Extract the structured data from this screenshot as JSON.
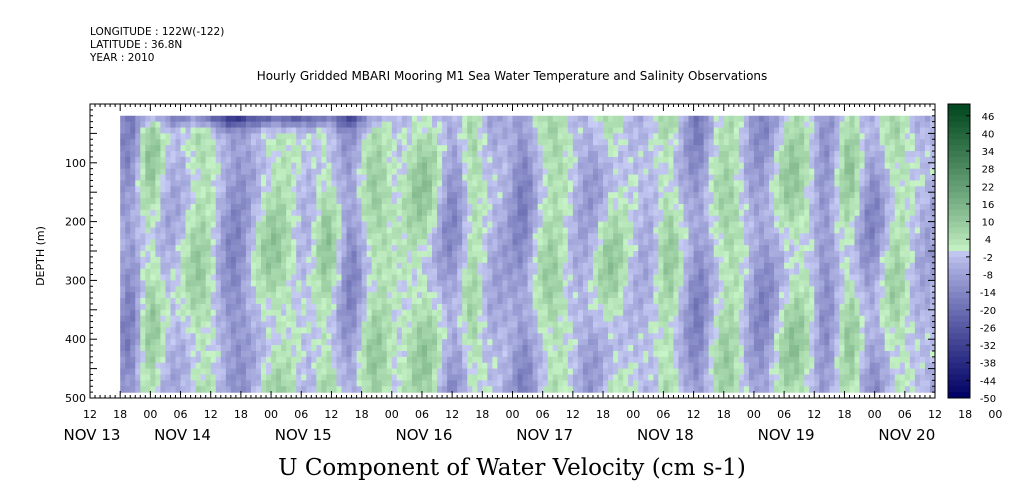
{
  "header": {
    "longitude": "LONGITUDE : 122W(-122)",
    "latitude": "LATITUDE : 36.8N",
    "year": "YEAR : 2010"
  },
  "chart_data": {
    "type": "heatmap",
    "title": "Hourly Gridded MBARI Mooring M1 Sea Water Temperature and Salinity Observations",
    "ylabel": "DEPTH (m)",
    "bottom_label": "U Component of Water Velocity (cm s-1)",
    "y_axis": {
      "range": [
        500,
        0
      ],
      "inverted": true,
      "ticks": [
        100,
        200,
        300,
        400,
        500
      ],
      "tick_labels": [
        "100",
        "200",
        "300",
        "400",
        "500"
      ],
      "data_depth_range": [
        20,
        490
      ]
    },
    "x_axis": {
      "range_hours": [
        0,
        168
      ],
      "hour_tick_labels": [
        "12",
        "18",
        "00",
        "06",
        "12",
        "18",
        "00",
        "06",
        "12",
        "18",
        "00",
        "06",
        "12",
        "18",
        "00",
        "06",
        "12",
        "18",
        "00",
        "06",
        "12",
        "18",
        "00",
        "06",
        "12",
        "18",
        "00",
        "06",
        "12",
        "18",
        "00",
        "06",
        "12",
        "18",
        "00",
        "06",
        "12"
      ],
      "date_labels": [
        "NOV 13",
        "NOV 14",
        "NOV 15",
        "NOV 16",
        "NOV 17",
        "NOV 18",
        "NOV 19",
        "NOV 20"
      ],
      "data_start_hour": 6
    },
    "colorbar": {
      "min": -50,
      "max": 50,
      "step": 2,
      "labels": [
        "46",
        "40",
        "34",
        "28",
        "22",
        "16",
        "10",
        "4",
        "-2",
        "-8",
        "-14",
        "-20",
        "-26",
        "-32",
        "-38",
        "-44",
        "-50"
      ]
    },
    "pattern": {
      "surface_jet": {
        "value": -32,
        "start_hour": 6,
        "end_hour": 64
      },
      "green_columns_hours": [
        12,
        22,
        37,
        47,
        57,
        66,
        76,
        92,
        103,
        115,
        127,
        140,
        151,
        160
      ],
      "blue_columns_hours": [
        8,
        29,
        52,
        72,
        86,
        100,
        121,
        134,
        146,
        156
      ]
    }
  }
}
